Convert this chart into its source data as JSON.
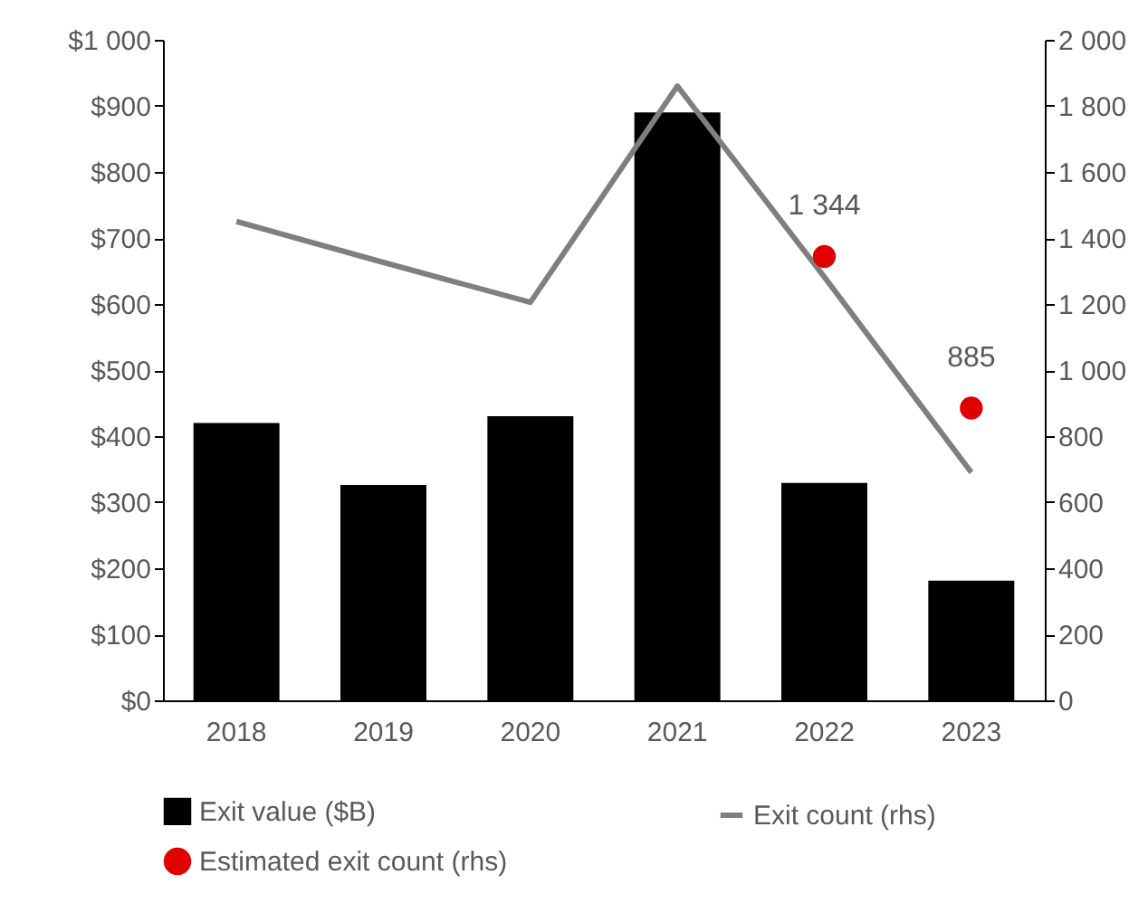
{
  "chart_data": {
    "type": "bar",
    "categories": [
      "2018",
      "2019",
      "2020",
      "2021",
      "2022",
      "2023"
    ],
    "series": [
      {
        "name": "Exit value ($B)",
        "color": "#000000",
        "values": [
          420,
          326,
          430,
          890,
          329,
          181
        ]
      },
      {
        "name": "Exit count (rhs)",
        "type": "line",
        "axis": "y2",
        "color": "#7f7f7f",
        "values": [
          1450,
          1326,
          1205,
          1860,
          1282,
          690
        ]
      },
      {
        "name": "Estimated exit count (rhs)",
        "type": "scatter",
        "axis": "y2",
        "color": "#e00000",
        "values": [
          null,
          null,
          null,
          null,
          1344,
          885
        ],
        "value_labels": [
          null,
          null,
          null,
          null,
          "1 344",
          "885"
        ]
      }
    ],
    "ylim": [
      0,
      1000
    ],
    "yticks": [
      {
        "value": 0,
        "label": "$0"
      },
      {
        "value": 100,
        "label": "$100"
      },
      {
        "value": 200,
        "label": "$200"
      },
      {
        "value": 300,
        "label": "$300"
      },
      {
        "value": 400,
        "label": "$400"
      },
      {
        "value": 500,
        "label": "$500"
      },
      {
        "value": 600,
        "label": "$600"
      },
      {
        "value": 700,
        "label": "$700"
      },
      {
        "value": 800,
        "label": "$800"
      },
      {
        "value": 900,
        "label": "$900"
      },
      {
        "value": 1000,
        "label": "$1 000"
      }
    ],
    "y2lim": [
      0,
      2000
    ],
    "y2ticks": [
      0,
      200,
      400,
      600,
      800,
      {
        "value": 1000,
        "label": "1 000"
      },
      {
        "value": 1200,
        "label": "1 200"
      },
      {
        "value": 1400,
        "label": "1 400"
      },
      {
        "value": 1600,
        "label": "1 600"
      },
      {
        "value": 1800,
        "label": "1 800"
      },
      {
        "value": 2000,
        "label": "2 000"
      }
    ],
    "grid": false,
    "legend": "bottom"
  }
}
